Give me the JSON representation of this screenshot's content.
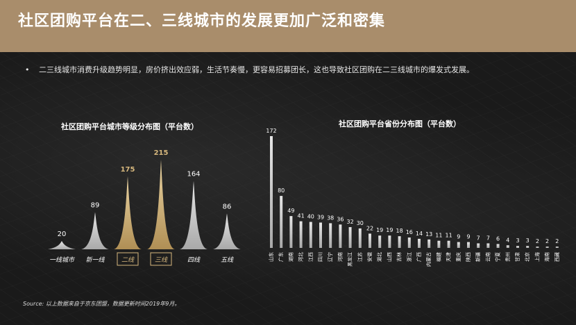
{
  "header": {
    "title": "社区团购平台在二、三线城市的发展更加广泛和密集"
  },
  "bullet": {
    "dot": "•",
    "text": "二三线城市消费升级趋势明显，房价挤出效应弱，生活节奏慢，更容易招募团长，这也导致社区团购在二三线城市的爆发式发展。"
  },
  "source": "Source: 以上数据来自于京东团盟，数据更新时间2019年9月。",
  "colors": {
    "header": "#a98d6b",
    "gold": "#d6b77d",
    "grey": "#c8c8c8"
  },
  "chart_data": [
    {
      "type": "bar",
      "title": "社区团购平台城市等级分布图（平台数）",
      "categories": [
        "一线城市",
        "新一线",
        "二线",
        "三线",
        "四线",
        "五线"
      ],
      "values": [
        20,
        89,
        175,
        215,
        164,
        86
      ],
      "highlighted": [
        "二线",
        "三线"
      ]
    },
    {
      "type": "bar",
      "title": "社区团购平台省份分布图（平台数）",
      "categories": [
        "山东",
        "广东",
        "湖南",
        "河北",
        "江西",
        "四川",
        "辽宁",
        "河南",
        "黑龙江",
        "江苏",
        "安徽",
        "湖北",
        "山西",
        "吉林",
        "浙江",
        "广西",
        "内蒙古",
        "福建",
        "天津",
        "重庆",
        "陕西",
        "新疆",
        "云南",
        "宁夏",
        "贵州",
        "甘肃",
        "北京",
        "上海",
        "海南",
        "西藏"
      ],
      "values": [
        172,
        80,
        49,
        41,
        40,
        39,
        38,
        36,
        32,
        30,
        22,
        19,
        19,
        18,
        16,
        14,
        13,
        11,
        11,
        9,
        9,
        7,
        7,
        6,
        4,
        3,
        3,
        2,
        2,
        2
      ]
    }
  ]
}
